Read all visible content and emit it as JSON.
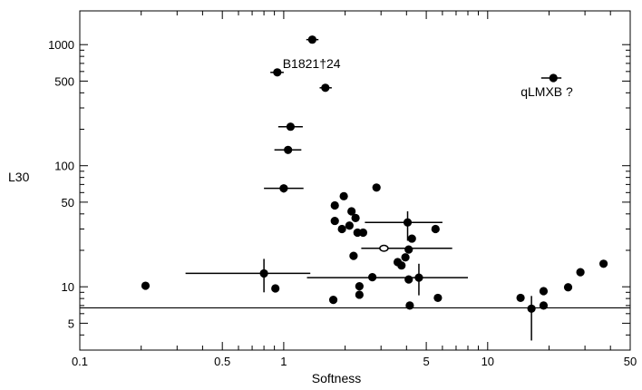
{
  "chart_data": {
    "type": "scatter",
    "xlabel": "Softness",
    "ylabel": "L30",
    "xscale": "log",
    "yscale": "log",
    "xlim": [
      0.1,
      50
    ],
    "ylim": [
      3,
      1900
    ],
    "grid": false,
    "x_ticks": [
      {
        "value": 0.1,
        "label": "0.1"
      },
      {
        "value": 0.5,
        "label": "0.5"
      },
      {
        "value": 1,
        "label": "1"
      },
      {
        "value": 5,
        "label": "5"
      },
      {
        "value": 10,
        "label": "10"
      },
      {
        "value": 50,
        "label": "50"
      }
    ],
    "y_ticks": [
      {
        "value": 5,
        "label": "5"
      },
      {
        "value": 10,
        "label": "10"
      },
      {
        "value": 50,
        "label": "50"
      },
      {
        "value": 100,
        "label": "100"
      },
      {
        "value": 500,
        "label": "500"
      },
      {
        "value": 1000,
        "label": "1000"
      }
    ],
    "threshold_line": {
      "y": 6.7
    },
    "annotations": [
      {
        "text": "B1821†24",
        "x": 1.37,
        "y": 700
      },
      {
        "text": "qLMXB ?",
        "x": 19.5,
        "y": 410
      }
    ],
    "points": [
      {
        "x": 0.21,
        "y": 10.2
      },
      {
        "x": 0.91,
        "y": 9.7
      },
      {
        "x": 0.8,
        "y": 12.9,
        "xerr": [
          0.33,
          1.35
        ],
        "yerr": [
          9.0,
          17.0
        ]
      },
      {
        "x": 0.93,
        "y": 590,
        "xerr": [
          0.86,
          1.0
        ]
      },
      {
        "x": 1.0,
        "y": 65,
        "xerr": [
          0.8,
          1.25
        ],
        "yerr": [
          60,
          70
        ]
      },
      {
        "x": 1.05,
        "y": 135,
        "xerr": [
          0.9,
          1.22
        ],
        "yerr": [
          128,
          142
        ]
      },
      {
        "x": 1.08,
        "y": 210,
        "xerr": [
          0.94,
          1.24
        ]
      },
      {
        "x": 1.38,
        "y": 1100,
        "xerr": [
          1.29,
          1.48
        ]
      },
      {
        "x": 1.6,
        "y": 440,
        "xerr": [
          1.5,
          1.72
        ]
      },
      {
        "x": 1.75,
        "y": 7.8
      },
      {
        "x": 1.78,
        "y": 47
      },
      {
        "x": 1.78,
        "y": 35
      },
      {
        "x": 1.93,
        "y": 30
      },
      {
        "x": 1.97,
        "y": 56
      },
      {
        "x": 2.1,
        "y": 32
      },
      {
        "x": 2.15,
        "y": 42
      },
      {
        "x": 2.2,
        "y": 18
      },
      {
        "x": 2.25,
        "y": 37
      },
      {
        "x": 2.3,
        "y": 28
      },
      {
        "x": 2.35,
        "y": 8.6
      },
      {
        "x": 2.35,
        "y": 10.1
      },
      {
        "x": 2.45,
        "y": 28
      },
      {
        "x": 2.72,
        "y": 12
      },
      {
        "x": 2.85,
        "y": 66
      },
      {
        "x": 3.62,
        "y": 16
      },
      {
        "x": 3.78,
        "y": 15
      },
      {
        "x": 3.95,
        "y": 17.5
      },
      {
        "x": 4.05,
        "y": 34,
        "xerr": [
          2.5,
          6.0
        ],
        "yerr": [
          24,
          42
        ]
      },
      {
        "x": 4.1,
        "y": 20.3
      },
      {
        "x": 4.1,
        "y": 11.5
      },
      {
        "x": 4.15,
        "y": 7.0
      },
      {
        "x": 4.25,
        "y": 25
      },
      {
        "x": 4.6,
        "y": 11.9,
        "xerr": [
          1.3,
          8.0
        ],
        "yerr": [
          8.5,
          15.5
        ]
      },
      {
        "x": 5.55,
        "y": 30
      },
      {
        "x": 5.7,
        "y": 8.1
      },
      {
        "x": 14.5,
        "y": 8.1
      },
      {
        "x": 16.4,
        "y": 6.6,
        "yerr": [
          3.6,
          8.4
        ]
      },
      {
        "x": 18.8,
        "y": 7.0
      },
      {
        "x": 18.8,
        "y": 9.2
      },
      {
        "x": 21.0,
        "y": 530,
        "xerr": [
          18.3,
          23.0
        ]
      },
      {
        "x": 24.8,
        "y": 9.9
      },
      {
        "x": 28.5,
        "y": 13.2
      },
      {
        "x": 37.0,
        "y": 15.5
      }
    ],
    "open_points": [
      {
        "x": 3.1,
        "y": 20.8,
        "xerr": [
          2.4,
          6.7
        ]
      }
    ]
  }
}
